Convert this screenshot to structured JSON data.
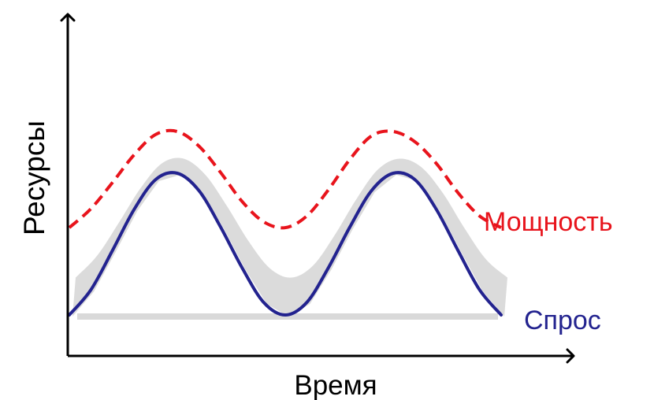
{
  "chart_data": {
    "type": "line",
    "title": "",
    "xlabel": "Время",
    "ylabel": "Ресурсы",
    "grid": false,
    "legend": "inline-right",
    "colors": {
      "axis": "#000000",
      "capacity": "#e8141c",
      "demand": "#23238f",
      "band": "#d9d9d9"
    },
    "series": [
      {
        "name": "Мощность",
        "style": "dashed",
        "x": [
          0.0,
          0.05,
          0.1,
          0.15,
          0.2,
          0.25,
          0.3,
          0.35,
          0.4,
          0.45,
          0.5,
          0.55,
          0.6,
          0.65,
          0.7,
          0.75,
          0.8,
          0.85,
          0.9,
          0.95,
          1.0
        ],
        "values": [
          0.34,
          0.47,
          0.65,
          0.84,
          0.98,
          1.0,
          0.9,
          0.72,
          0.52,
          0.38,
          0.34,
          0.42,
          0.6,
          0.81,
          0.97,
          1.0,
          0.93,
          0.78,
          0.58,
          0.42,
          0.34
        ]
      },
      {
        "name": "Спрос",
        "style": "solid",
        "x": [
          0.0,
          0.05,
          0.1,
          0.15,
          0.2,
          0.25,
          0.3,
          0.35,
          0.4,
          0.45,
          0.5,
          0.55,
          0.6,
          0.65,
          0.7,
          0.75,
          0.8,
          0.85,
          0.9,
          0.95,
          1.0
        ],
        "values": [
          0.0,
          0.16,
          0.41,
          0.67,
          0.86,
          0.9,
          0.79,
          0.56,
          0.3,
          0.08,
          0.0,
          0.08,
          0.3,
          0.56,
          0.79,
          0.9,
          0.86,
          0.67,
          0.41,
          0.16,
          0.0
        ]
      }
    ]
  }
}
